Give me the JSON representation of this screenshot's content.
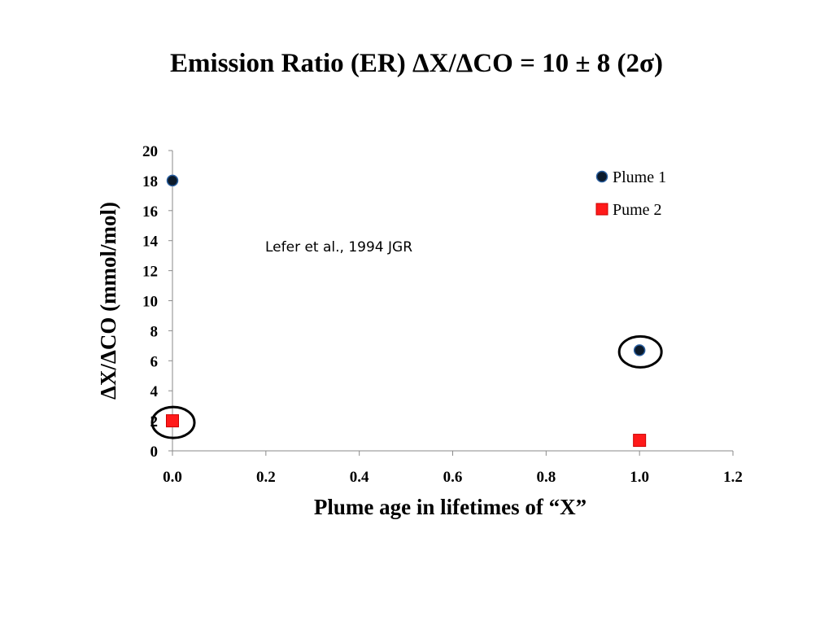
{
  "title": "Emission Ratio (ER) ΔX/ΔCO = 10 ± 8 (2σ)",
  "chart_data": {
    "type": "scatter",
    "xlabel": "Plume age  in lifetimes of “X”",
    "ylabel": "ΔX/ΔCO (mmol/mol)",
    "xlim": [
      0,
      1.2
    ],
    "ylim": [
      0,
      20
    ],
    "xticks": [
      "0.0",
      "0.2",
      "0.4",
      "0.6",
      "0.8",
      "1.0",
      "1.2"
    ],
    "yticks": [
      "0",
      "2",
      "4",
      "6",
      "8",
      "10",
      "12",
      "14",
      "16",
      "18",
      "20"
    ],
    "grid": false,
    "legend_position": "top-right",
    "series": [
      {
        "name": "Plume 1",
        "marker": "circle",
        "color": "#0b1a2b",
        "points": [
          {
            "x": 0.0,
            "y": 18.0
          },
          {
            "x": 1.0,
            "y": 6.7
          }
        ]
      },
      {
        "name": "Pume 2",
        "marker": "square",
        "color": "#ff1a1a",
        "points": [
          {
            "x": 0.0,
            "y": 2.0
          },
          {
            "x": 1.0,
            "y": 0.7
          }
        ]
      }
    ],
    "highlighted_points": [
      {
        "series": "Pume 2",
        "x": 0.0,
        "y": 2.0
      },
      {
        "series": "Plume 1",
        "x": 1.0,
        "y": 6.7
      }
    ],
    "annotations": [
      {
        "text": "Lefer et al., 1994 JGR"
      }
    ]
  }
}
